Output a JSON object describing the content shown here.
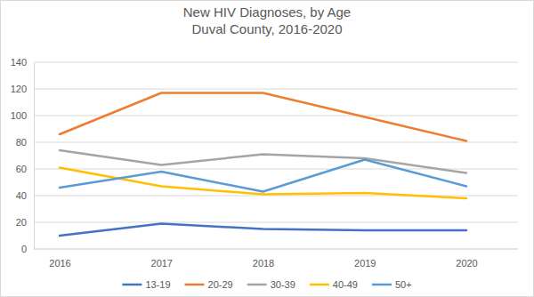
{
  "chart_data": {
    "type": "line",
    "title": "New HIV Diagnoses, by Age",
    "subtitle": "Duval County, 2016-2020",
    "categories": [
      "2016",
      "2017",
      "2018",
      "2019",
      "2020"
    ],
    "series": [
      {
        "name": "13-19",
        "color": "#4472c4",
        "values": [
          10,
          19,
          15,
          14,
          14
        ]
      },
      {
        "name": "20-29",
        "color": "#ed7d31",
        "values": [
          86,
          117,
          117,
          99,
          81
        ]
      },
      {
        "name": "30-39",
        "color": "#a5a5a5",
        "values": [
          74,
          63,
          71,
          68,
          57
        ]
      },
      {
        "name": "40-49",
        "color": "#ffc000",
        "values": [
          61,
          47,
          41,
          42,
          38
        ]
      },
      {
        "name": "50+",
        "color": "#5b9bd5",
        "values": [
          46,
          58,
          43,
          67,
          47
        ]
      }
    ],
    "ylim": [
      0,
      140
    ],
    "yticks": [
      0,
      20,
      40,
      60,
      80,
      100,
      120,
      140
    ],
    "grid": true,
    "legend": "bottom"
  }
}
